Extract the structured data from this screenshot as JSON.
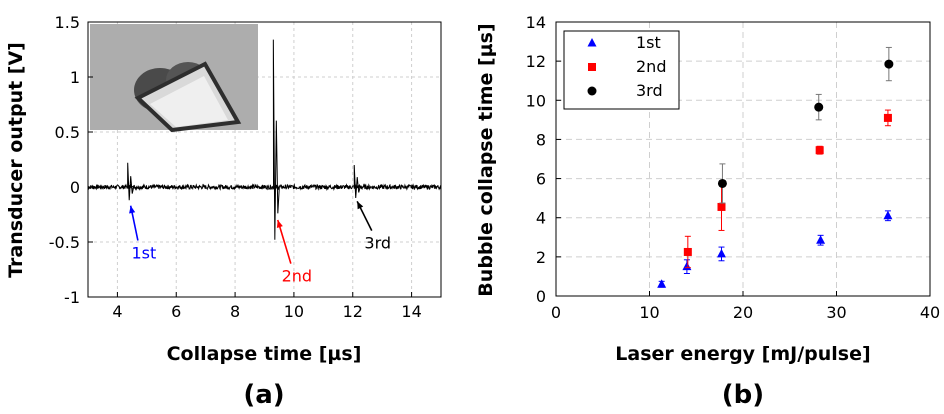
{
  "chart_data": [
    {
      "type": "line",
      "panel_label": "(a)",
      "xlabel": "Collapse time [µs]",
      "ylabel": "Transducer output [V]",
      "xlim": [
        3,
        15
      ],
      "ylim": [
        -1,
        1.5
      ],
      "xticks": [
        4,
        6,
        8,
        10,
        12,
        14
      ],
      "yticks": [
        -1,
        -0.5,
        0,
        0.5,
        1,
        1.5
      ],
      "grid": true,
      "inset_image": "bubble-photo",
      "signal": {
        "baseline": 0,
        "noise_amplitude": 0.02,
        "events": [
          {
            "t": 4.35,
            "peak": 0.22,
            "trough": -0.12
          },
          {
            "t": 9.3,
            "peak": 1.34,
            "trough": -0.48
          },
          {
            "t": 12.05,
            "peak": 0.2,
            "trough": -0.1
          }
        ]
      },
      "annotations": [
        {
          "text": "1st",
          "color": "#0000ff",
          "text_x": 4.9,
          "text_y": -0.65,
          "arrow_to": [
            4.45,
            -0.17
          ]
        },
        {
          "text": "2nd",
          "color": "#ff0000",
          "text_x": 10.1,
          "text_y": -0.86,
          "arrow_to": [
            9.45,
            -0.3
          ]
        },
        {
          "text": "3rd",
          "color": "#000000",
          "text_x": 12.85,
          "text_y": -0.56,
          "arrow_to": [
            12.15,
            -0.13
          ]
        }
      ]
    },
    {
      "type": "scatter",
      "panel_label": "(b)",
      "xlabel": "Laser energy [mJ/pulse]",
      "ylabel": "Bubble collapse time [µs]",
      "xlim": [
        0,
        40
      ],
      "ylim": [
        0,
        14
      ],
      "xticks": [
        0,
        10,
        20,
        30,
        40
      ],
      "yticks": [
        0,
        2,
        4,
        6,
        8,
        10,
        12,
        14
      ],
      "grid": true,
      "legend_position": "top-left",
      "series": [
        {
          "name": "1st",
          "marker": "triangle",
          "color": "#0000ff",
          "x": [
            11.3,
            14.0,
            17.7,
            28.3,
            35.5
          ],
          "y": [
            0.6,
            1.5,
            2.15,
            2.85,
            4.1
          ],
          "err": [
            0.15,
            0.35,
            0.35,
            0.25,
            0.25
          ]
        },
        {
          "name": "2nd",
          "marker": "square",
          "color": "#ff0000",
          "x": [
            14.1,
            17.7,
            28.2,
            35.5
          ],
          "y": [
            2.25,
            4.55,
            7.45,
            9.1
          ],
          "err": [
            0.8,
            1.2,
            0.2,
            0.4
          ]
        },
        {
          "name": "3rd",
          "marker": "circle",
          "color": "#000000",
          "x": [
            17.8,
            28.1,
            35.6
          ],
          "y": [
            5.75,
            9.65,
            11.85
          ],
          "err": [
            1.0,
            0.65,
            0.85
          ]
        }
      ]
    }
  ]
}
